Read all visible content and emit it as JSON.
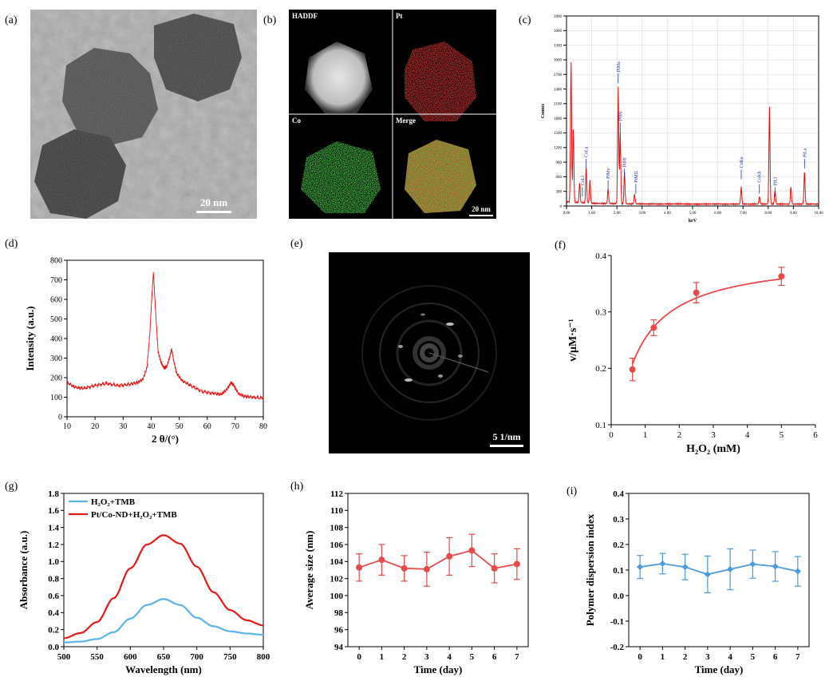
{
  "panel_labels": [
    "(a)",
    "(b)",
    "(c)",
    "(d)",
    "(e)",
    "(f)",
    "(g)",
    "(h)",
    "(i)"
  ],
  "panel_a": {
    "scale_bar": "20 nm"
  },
  "panel_b": {
    "quadrants": [
      "HADDF",
      "Pt",
      "Co",
      "Merge"
    ],
    "scale_bar": "20 nm",
    "colors": {
      "pt": "#e01010",
      "co": "#10c020"
    }
  },
  "panel_e": {
    "scale_bar": "5 1/nm"
  },
  "chart_data": [
    {
      "id": "c",
      "type": "line",
      "title": "",
      "xlabel": "keV",
      "ylabel": "Counts",
      "xlim": [
        0,
        10
      ],
      "ylim": [
        0,
        3900
      ],
      "xticks": [
        "0.00",
        "1.00",
        "2.00",
        "3.00",
        "4.00",
        "5.00",
        "6.00",
        "7.00",
        "8.00",
        "9.00",
        "10.00"
      ],
      "yticks": [
        "0",
        "300",
        "600",
        "900",
        "1200",
        "1500",
        "1800",
        "2100",
        "2400",
        "2700",
        "3000",
        "3300",
        "3600",
        "3900"
      ],
      "grid": true,
      "color": "#e01010",
      "peaks": [
        {
          "x": 0.18,
          "y": 2900
        },
        {
          "x": 0.27,
          "y": 1500
        },
        {
          "x": 0.52,
          "y": 400
        },
        {
          "x": 0.78,
          "y": 720
        },
        {
          "x": 0.93,
          "y": 480
        },
        {
          "x": 1.65,
          "y": 300
        },
        {
          "x": 2.05,
          "y": 2400
        },
        {
          "x": 2.13,
          "y": 1500
        },
        {
          "x": 2.3,
          "y": 650
        },
        {
          "x": 2.7,
          "y": 200
        },
        {
          "x": 6.93,
          "y": 350
        },
        {
          "x": 7.65,
          "y": 150
        },
        {
          "x": 8.05,
          "y": 1980
        },
        {
          "x": 8.27,
          "y": 280
        },
        {
          "x": 8.9,
          "y": 350
        },
        {
          "x": 9.44,
          "y": 680
        }
      ],
      "annotations": [
        {
          "text": "CoLa",
          "x": 0.78,
          "y": 1000
        },
        {
          "text": "CoLl",
          "x": 0.63,
          "y": 420
        },
        {
          "text": "PtMz",
          "x": 1.65,
          "y": 560
        },
        {
          "text": "PtMa",
          "x": 2.05,
          "y": 2750
        },
        {
          "text": "PtMr",
          "x": 2.13,
          "y": 1750
        },
        {
          "text": "PtMr",
          "x": 2.3,
          "y": 800
        },
        {
          "text": "PtMII",
          "x": 2.75,
          "y": 480
        },
        {
          "text": "CoKa",
          "x": 6.93,
          "y": 780
        },
        {
          "text": "CoKb",
          "x": 7.65,
          "y": 480
        },
        {
          "text": "PtLl",
          "x": 8.27,
          "y": 420
        },
        {
          "text": "PtLa",
          "x": 9.44,
          "y": 1000
        }
      ]
    },
    {
      "id": "d",
      "type": "line",
      "title": "",
      "xlabel": "2 θ/(°)",
      "ylabel": "Intensity (a.u.)",
      "xlim": [
        10,
        80
      ],
      "ylim": [
        0,
        800
      ],
      "xticks": [
        "10",
        "20",
        "30",
        "40",
        "50",
        "60",
        "70",
        "80"
      ],
      "yticks": [
        "0",
        "100",
        "200",
        "300",
        "400",
        "500",
        "600",
        "700",
        "800"
      ],
      "color": "#e01010",
      "x": [
        10,
        13,
        16,
        20,
        24,
        28,
        32,
        35,
        37,
        38.5,
        39.5,
        40.2,
        40.8,
        41.5,
        42.5,
        43.5,
        44.5,
        45.5,
        46.5,
        47.3,
        48,
        49,
        51,
        54,
        58,
        62,
        65,
        67,
        68.5,
        69.5,
        71,
        73,
        76,
        80
      ],
      "y": [
        175,
        150,
        145,
        160,
        170,
        160,
        165,
        175,
        190,
        250,
        420,
        600,
        740,
        560,
        330,
        280,
        250,
        255,
        300,
        345,
        290,
        225,
        185,
        160,
        130,
        120,
        115,
        140,
        175,
        160,
        120,
        105,
        100,
        95
      ]
    },
    {
      "id": "f",
      "type": "scatter",
      "title": "",
      "xlabel": "H₂O₂ (mM)",
      "ylabel": "v/μM·s⁻¹",
      "xlim": [
        0,
        6
      ],
      "ylim": [
        0.1,
        0.4
      ],
      "xticks": [
        "0",
        "1",
        "2",
        "3",
        "4",
        "5",
        "6"
      ],
      "yticks": [
        "0.1",
        "0.2",
        "0.3",
        "0.4"
      ],
      "color": "#e84a4a",
      "x": [
        0.625,
        1.25,
        2.5,
        5
      ],
      "y": [
        0.198,
        0.272,
        0.334,
        0.363
      ],
      "err": [
        0.02,
        0.014,
        0.018,
        0.016
      ],
      "fit": {
        "model": "Michaelis-Menten",
        "vmax": 0.4,
        "km": 0.58
      }
    },
    {
      "id": "g",
      "type": "line",
      "title": "",
      "xlabel": "Wavelength (nm)",
      "ylabel": "Absorbance (a.u.)",
      "xlim": [
        500,
        800
      ],
      "ylim": [
        0,
        1.8
      ],
      "xticks": [
        "500",
        "550",
        "600",
        "650",
        "700",
        "750",
        "800"
      ],
      "yticks": [
        "0.0",
        "0.2",
        "0.4",
        "0.6",
        "0.8",
        "1.0",
        "1.2",
        "1.4",
        "1.6",
        "1.8"
      ],
      "legend": "top-left",
      "x": [
        500,
        525,
        550,
        575,
        600,
        625,
        650,
        675,
        700,
        725,
        750,
        775,
        800
      ],
      "series": [
        {
          "name": "H₂O₂+TMB",
          "color": "#5ab4ea",
          "values": [
            0.05,
            0.06,
            0.09,
            0.17,
            0.33,
            0.49,
            0.56,
            0.49,
            0.34,
            0.24,
            0.18,
            0.155,
            0.14
          ]
        },
        {
          "name": "Pt/Co-ND+H₂O₂+TMB",
          "color": "#e01a1a",
          "values": [
            0.1,
            0.16,
            0.29,
            0.57,
            0.92,
            1.2,
            1.31,
            1.21,
            0.94,
            0.64,
            0.43,
            0.31,
            0.25
          ]
        }
      ]
    },
    {
      "id": "h",
      "type": "line",
      "title": "",
      "xlabel": "Time (day)",
      "ylabel": "Average size (nm)",
      "xlim": [
        -0.5,
        7.5
      ],
      "ylim": [
        94,
        112
      ],
      "xticks": [
        "0",
        "1",
        "2",
        "3",
        "4",
        "5",
        "6",
        "7"
      ],
      "yticks": [
        "94",
        "96",
        "98",
        "100",
        "102",
        "104",
        "106",
        "108",
        "110",
        "112"
      ],
      "color": "#e84a4a",
      "marker": "circle",
      "x": [
        0,
        1,
        2,
        3,
        4,
        5,
        6,
        7
      ],
      "y": [
        103.3,
        104.2,
        103.2,
        103.1,
        104.6,
        105.3,
        103.2,
        103.7
      ],
      "err": [
        1.6,
        1.8,
        1.5,
        2.0,
        2.2,
        1.9,
        1.7,
        1.8
      ]
    },
    {
      "id": "i",
      "type": "line",
      "title": "",
      "xlabel": "Time (day)",
      "ylabel": "Polymer dispersion index",
      "xlim": [
        -0.5,
        7.5
      ],
      "ylim": [
        -0.2,
        0.4
      ],
      "xticks": [
        "0",
        "1",
        "2",
        "3",
        "4",
        "5",
        "6",
        "7"
      ],
      "yticks": [
        "-0.2",
        "-0.1",
        "0.0",
        "0.1",
        "0.2",
        "0.3",
        "0.4"
      ],
      "color": "#4a9ae0",
      "marker": "diamond",
      "x": [
        0,
        1,
        2,
        3,
        4,
        5,
        6,
        7
      ],
      "y": [
        0.112,
        0.125,
        0.112,
        0.083,
        0.103,
        0.123,
        0.114,
        0.095
      ],
      "err": [
        0.045,
        0.04,
        0.05,
        0.072,
        0.08,
        0.055,
        0.058,
        0.058
      ]
    }
  ]
}
